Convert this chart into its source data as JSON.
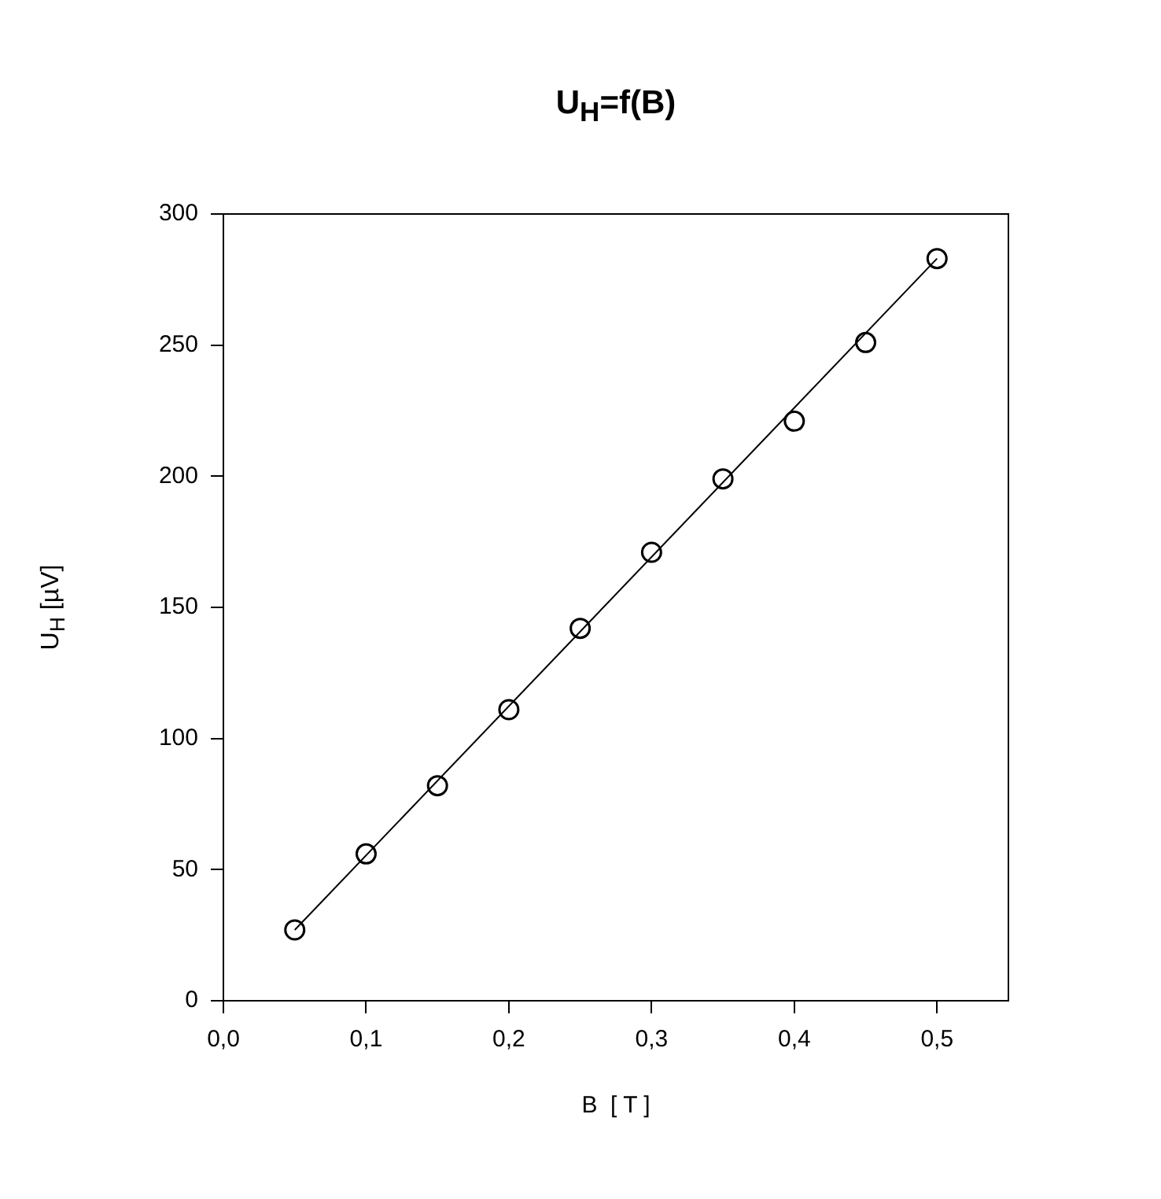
{
  "chart_data": {
    "type": "scatter",
    "title": "U$_{H}$=f(B)",
    "xlabel": "B  [ T ]",
    "ylabel": "U$_{H}$ [µV]",
    "x": [
      0.05,
      0.1,
      0.15,
      0.2,
      0.25,
      0.3,
      0.35,
      0.4,
      0.45,
      0.5
    ],
    "series": [
      {
        "color": "#000000",
        "values": [
          27,
          56,
          82,
          111,
          142,
          171,
          199,
          221,
          251,
          283
        ]
      },
      {
        "type": "line",
        "marker": "none",
        "color": "#000000",
        "x": [
          0.05,
          0.5
        ],
        "values": [
          27,
          283
        ]
      }
    ],
    "xlim": [
      0,
      0.55
    ],
    "xticks": [
      {
        "value": 0,
        "label": "0,0"
      },
      {
        "value": 0.1,
        "label": "0,1"
      },
      {
        "value": 0.2,
        "label": "0,2"
      },
      {
        "value": 0.3,
        "label": "0,3"
      },
      {
        "value": 0.4,
        "label": "0,4"
      },
      {
        "value": 0.5,
        "label": "0,5"
      }
    ],
    "ylim": [
      0,
      300
    ],
    "yticks": [
      0,
      50,
      100,
      150,
      200,
      250,
      300
    ],
    "grid": false,
    "legend": false,
    "marker": "circle"
  }
}
